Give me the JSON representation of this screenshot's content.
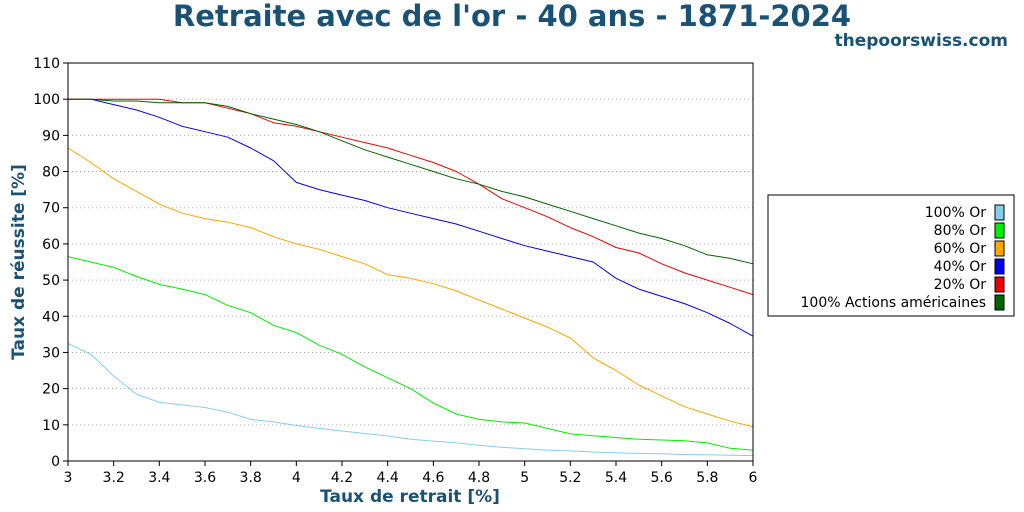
{
  "chart_data": {
    "type": "line",
    "title": "Retraite avec de l'or - 40 ans - 1871-2024",
    "brand": "thepoorswiss.com",
    "xlabel": "Taux de retrait [%]",
    "ylabel": "Taux de réussite [%]",
    "xlim": [
      3,
      6
    ],
    "ylim": [
      0,
      110
    ],
    "xticks": [
      3,
      3.2,
      3.4,
      3.6,
      3.8,
      4,
      4.2,
      4.4,
      4.6,
      4.8,
      5,
      5.2,
      5.4,
      5.6,
      5.8,
      6
    ],
    "xtick_labels": [
      "3",
      "3.2",
      "3.4",
      "3.6",
      "3.8",
      "4",
      "4.2",
      "4.4",
      "4.6",
      "4.8",
      "5",
      "5.2",
      "5.4",
      "5.6",
      "5.8",
      "6"
    ],
    "yticks": [
      0,
      10,
      20,
      30,
      40,
      50,
      60,
      70,
      80,
      90,
      100,
      110
    ],
    "ytick_labels": [
      "0",
      "10",
      "20",
      "30",
      "40",
      "50",
      "60",
      "70",
      "80",
      "90",
      "100",
      "110"
    ],
    "grid": "horizontal-dotted",
    "legend_position": "right",
    "x": [
      3,
      3.1,
      3.2,
      3.3,
      3.4,
      3.5,
      3.6,
      3.7,
      3.8,
      3.9,
      4,
      4.1,
      4.2,
      4.3,
      4.4,
      4.5,
      4.6,
      4.7,
      4.8,
      4.9,
      5,
      5.1,
      5.2,
      5.3,
      5.4,
      5.5,
      5.6,
      5.7,
      5.8,
      5.9,
      6
    ],
    "series": [
      {
        "name": "100% Or",
        "color": "#87ceeb",
        "values": [
          32.5,
          29.5,
          23.5,
          18.5,
          16.2,
          15.5,
          14.8,
          13.5,
          11.5,
          10.8,
          9.8,
          9.0,
          8.3,
          7.6,
          6.9,
          6.0,
          5.5,
          5.0,
          4.3,
          3.8,
          3.4,
          3.0,
          2.8,
          2.5,
          2.3,
          2.1,
          2.0,
          1.8,
          1.7,
          1.6,
          1.5
        ]
      },
      {
        "name": "80% Or",
        "color": "#00ee00",
        "values": [
          56.5,
          55.0,
          53.5,
          51.0,
          48.8,
          47.5,
          46.0,
          43.0,
          41.0,
          37.5,
          35.5,
          32.0,
          29.5,
          26.0,
          23.0,
          20.0,
          16.0,
          13.0,
          11.5,
          10.8,
          10.5,
          9.0,
          7.5,
          7.0,
          6.5,
          6.0,
          5.8,
          5.6,
          5.0,
          3.5,
          3.0
        ]
      },
      {
        "name": "60% Or",
        "color": "#ffa500",
        "values": [
          86.5,
          82.5,
          78.0,
          74.5,
          71.0,
          68.5,
          67.0,
          66.0,
          64.5,
          62.0,
          60.0,
          58.5,
          56.5,
          54.5,
          51.5,
          50.5,
          49.0,
          47.0,
          44.5,
          42.0,
          39.5,
          37.0,
          34.0,
          28.5,
          25.0,
          21.0,
          18.0,
          15.0,
          13.0,
          11.0,
          9.5
        ]
      },
      {
        "name": "40% Or",
        "color": "#0000ee",
        "values": [
          100,
          100,
          98.5,
          97.0,
          95.0,
          92.5,
          91.0,
          89.5,
          86.5,
          83.0,
          77.0,
          75.0,
          73.5,
          72.0,
          70.0,
          68.5,
          67.0,
          65.5,
          63.5,
          61.5,
          59.5,
          58.0,
          56.5,
          55.0,
          50.5,
          47.5,
          45.5,
          43.5,
          41.0,
          38.0,
          34.5
        ]
      },
      {
        "name": "20% Or",
        "color": "#ee0000",
        "values": [
          100,
          100,
          100,
          100,
          100,
          99.0,
          99.0,
          97.5,
          96.0,
          93.5,
          92.5,
          91.0,
          89.5,
          88.0,
          86.5,
          84.5,
          82.5,
          80.0,
          76.5,
          72.5,
          70.0,
          67.5,
          64.5,
          62.0,
          59.0,
          57.5,
          54.5,
          52.0,
          50.0,
          48.0,
          46.0
        ]
      },
      {
        "name": "100% Actions américaines",
        "color": "#006400",
        "values": [
          100,
          100,
          99.5,
          99.5,
          99.0,
          99.0,
          99.0,
          98.0,
          96.0,
          94.5,
          93.0,
          91.0,
          88.5,
          86.0,
          84.0,
          82.0,
          80.0,
          78.0,
          76.5,
          74.5,
          73.0,
          71.0,
          69.0,
          67.0,
          65.0,
          63.0,
          61.5,
          59.5,
          57.0,
          56.0,
          54.5
        ]
      }
    ]
  }
}
